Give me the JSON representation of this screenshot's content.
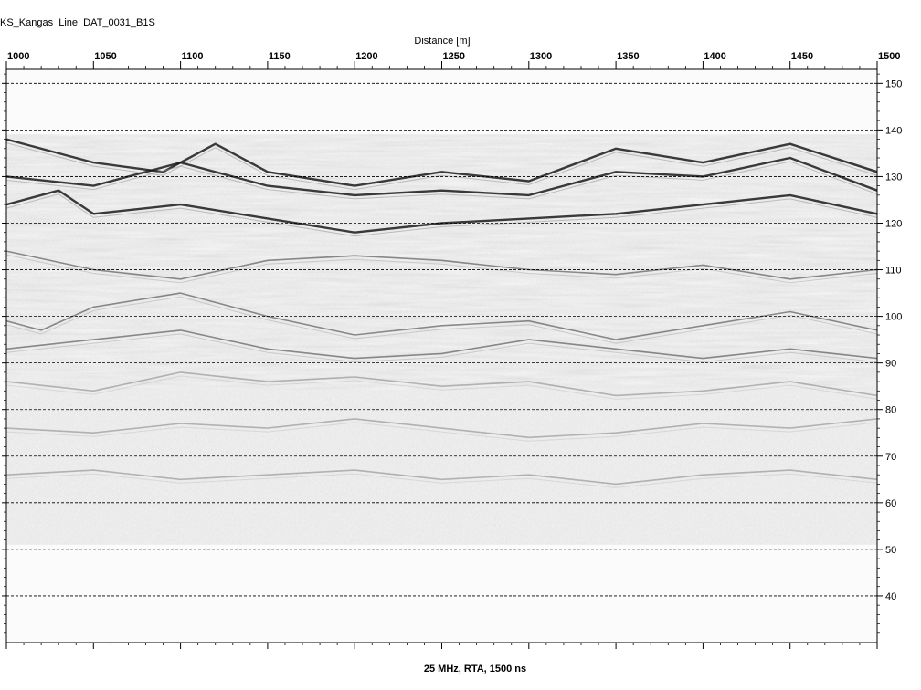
{
  "header": {
    "title_left": "KS_Kangas",
    "line_label": "Line: DAT_0031_B1S"
  },
  "footer": {
    "text": "25 MHz, RTA, 1500 ns"
  },
  "chart_data": {
    "type": "heatmap",
    "title": "KS_Kangas  Line: DAT_0031_B1S",
    "xlabel": "Distance [m]",
    "ylabel": "",
    "xlim": [
      1000,
      1500
    ],
    "ylim": [
      30,
      153
    ],
    "x_ticks": [
      1000,
      1050,
      1100,
      1150,
      1200,
      1250,
      1300,
      1350,
      1400,
      1450,
      1500
    ],
    "y_ticks": [
      150,
      140,
      130,
      120,
      110,
      100,
      90,
      80,
      70,
      60,
      50,
      40
    ],
    "grid": true,
    "data_top_elevation": 139,
    "data_bottom_elevation": 51,
    "colormap": "grayscale",
    "reflectors": [
      {
        "name": "ground",
        "points": [
          [
            1000,
            138
          ],
          [
            1050,
            133
          ],
          [
            1090,
            131
          ],
          [
            1120,
            137
          ],
          [
            1150,
            131
          ],
          [
            1200,
            128
          ],
          [
            1250,
            131
          ],
          [
            1300,
            129
          ],
          [
            1350,
            136
          ],
          [
            1400,
            133
          ],
          [
            1450,
            137
          ],
          [
            1500,
            131
          ]
        ]
      },
      {
        "name": "r1",
        "points": [
          [
            1000,
            130
          ],
          [
            1050,
            128
          ],
          [
            1100,
            133
          ],
          [
            1150,
            128
          ],
          [
            1200,
            126
          ],
          [
            1250,
            127
          ],
          [
            1300,
            126
          ],
          [
            1350,
            131
          ],
          [
            1400,
            130
          ],
          [
            1450,
            134
          ],
          [
            1500,
            127
          ]
        ]
      },
      {
        "name": "r2",
        "points": [
          [
            1000,
            124
          ],
          [
            1030,
            127
          ],
          [
            1050,
            122
          ],
          [
            1100,
            124
          ],
          [
            1150,
            121
          ],
          [
            1200,
            118
          ],
          [
            1250,
            120
          ],
          [
            1300,
            121
          ],
          [
            1350,
            122
          ],
          [
            1400,
            124
          ],
          [
            1450,
            126
          ],
          [
            1500,
            122
          ]
        ]
      },
      {
        "name": "r3",
        "points": [
          [
            1000,
            114
          ],
          [
            1050,
            110
          ],
          [
            1100,
            108
          ],
          [
            1150,
            112
          ],
          [
            1200,
            113
          ],
          [
            1250,
            112
          ],
          [
            1300,
            110
          ],
          [
            1350,
            109
          ],
          [
            1400,
            111
          ],
          [
            1450,
            108
          ],
          [
            1500,
            110
          ]
        ]
      },
      {
        "name": "r4",
        "points": [
          [
            1000,
            99
          ],
          [
            1020,
            97
          ],
          [
            1050,
            102
          ],
          [
            1100,
            105
          ],
          [
            1150,
            100
          ],
          [
            1200,
            96
          ],
          [
            1250,
            98
          ],
          [
            1300,
            99
          ],
          [
            1350,
            95
          ],
          [
            1400,
            98
          ],
          [
            1450,
            101
          ],
          [
            1500,
            97
          ]
        ]
      },
      {
        "name": "r5",
        "points": [
          [
            1000,
            93
          ],
          [
            1050,
            95
          ],
          [
            1100,
            97
          ],
          [
            1150,
            93
          ],
          [
            1200,
            91
          ],
          [
            1250,
            92
          ],
          [
            1300,
            95
          ],
          [
            1350,
            93
          ],
          [
            1400,
            91
          ],
          [
            1450,
            93
          ],
          [
            1500,
            91
          ]
        ]
      },
      {
        "name": "r6",
        "points": [
          [
            1000,
            86
          ],
          [
            1050,
            84
          ],
          [
            1100,
            88
          ],
          [
            1150,
            86
          ],
          [
            1200,
            87
          ],
          [
            1250,
            85
          ],
          [
            1300,
            86
          ],
          [
            1350,
            83
          ],
          [
            1400,
            84
          ],
          [
            1450,
            86
          ],
          [
            1500,
            83
          ]
        ]
      },
      {
        "name": "r7",
        "points": [
          [
            1000,
            76
          ],
          [
            1050,
            75
          ],
          [
            1100,
            77
          ],
          [
            1150,
            76
          ],
          [
            1200,
            78
          ],
          [
            1250,
            76
          ],
          [
            1300,
            74
          ],
          [
            1350,
            75
          ],
          [
            1400,
            77
          ],
          [
            1450,
            76
          ],
          [
            1500,
            78
          ]
        ]
      },
      {
        "name": "r8",
        "points": [
          [
            1000,
            66
          ],
          [
            1050,
            67
          ],
          [
            1100,
            65
          ],
          [
            1150,
            66
          ],
          [
            1200,
            67
          ],
          [
            1250,
            65
          ],
          [
            1300,
            66
          ],
          [
            1350,
            64
          ],
          [
            1400,
            66
          ],
          [
            1450,
            67
          ],
          [
            1500,
            65
          ]
        ]
      }
    ]
  }
}
